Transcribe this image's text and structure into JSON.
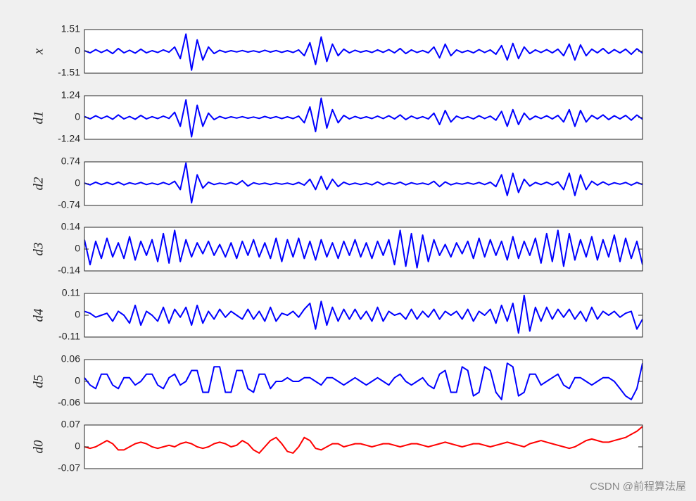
{
  "chart_data": [
    {
      "type": "line",
      "ylabel": "x",
      "color": "#0000ff",
      "ylim": [
        -1.51,
        1.51
      ],
      "yticks": [
        -1.51,
        0,
        1.51
      ],
      "values": [
        0.05,
        -0.1,
        0.12,
        -0.08,
        0.1,
        -0.15,
        0.2,
        -0.1,
        0.08,
        -0.12,
        0.15,
        -0.1,
        0.05,
        -0.08,
        0.1,
        -0.06,
        0.3,
        -0.5,
        1.2,
        -1.3,
        0.8,
        -0.6,
        0.3,
        -0.15,
        0.08,
        -0.06,
        0.05,
        -0.04,
        0.06,
        -0.05,
        0.04,
        -0.06,
        0.08,
        -0.05,
        0.06,
        -0.07,
        0.05,
        -0.08,
        0.1,
        -0.3,
        0.6,
        -0.9,
        1.0,
        -0.7,
        0.5,
        -0.3,
        0.15,
        -0.1,
        0.08,
        -0.06,
        0.05,
        -0.08,
        0.1,
        -0.07,
        0.12,
        -0.1,
        0.2,
        -0.15,
        0.1,
        -0.08,
        0.06,
        -0.1,
        0.3,
        -0.45,
        0.5,
        -0.3,
        0.1,
        -0.08,
        0.06,
        -0.1,
        0.12,
        -0.08,
        0.1,
        -0.2,
        0.4,
        -0.6,
        0.55,
        -0.5,
        0.3,
        -0.15,
        0.1,
        -0.08,
        0.12,
        -0.1,
        0.15,
        -0.3,
        0.5,
        -0.6,
        0.45,
        -0.3,
        0.15,
        -0.1,
        0.2,
        -0.15,
        0.12,
        -0.1,
        0.15,
        -0.2,
        0.18,
        -0.12
      ]
    },
    {
      "type": "line",
      "ylabel": "d1",
      "color": "#0000ff",
      "ylim": [
        -1.24,
        1.24
      ],
      "yticks": [
        -1.24,
        0,
        1.24
      ],
      "values": [
        0.06,
        -0.08,
        0.1,
        -0.06,
        0.08,
        -0.1,
        0.15,
        -0.08,
        0.06,
        -0.1,
        0.12,
        -0.08,
        0.05,
        -0.06,
        0.08,
        -0.05,
        0.3,
        -0.5,
        1.0,
        -1.1,
        0.7,
        -0.5,
        0.25,
        -0.12,
        0.06,
        -0.05,
        0.04,
        -0.03,
        0.05,
        -0.04,
        0.03,
        -0.05,
        0.06,
        -0.04,
        0.05,
        -0.06,
        0.04,
        -0.06,
        0.08,
        -0.3,
        0.6,
        -0.8,
        1.1,
        -0.6,
        0.45,
        -0.3,
        0.12,
        -0.08,
        0.06,
        -0.05,
        0.04,
        -0.06,
        0.08,
        -0.06,
        0.1,
        -0.08,
        0.15,
        -0.12,
        0.08,
        -0.06,
        0.05,
        -0.08,
        0.25,
        -0.4,
        0.4,
        -0.25,
        0.08,
        -0.06,
        0.05,
        -0.08,
        0.1,
        -0.06,
        0.08,
        -0.15,
        0.35,
        -0.5,
        0.45,
        -0.4,
        0.25,
        -0.12,
        0.08,
        -0.06,
        0.1,
        -0.08,
        0.12,
        -0.25,
        0.45,
        -0.5,
        0.4,
        -0.25,
        0.12,
        -0.08,
        0.15,
        -0.12,
        0.1,
        -0.08,
        0.12,
        -0.15,
        0.14,
        -0.1
      ]
    },
    {
      "type": "line",
      "ylabel": "d2",
      "color": "#0000ff",
      "ylim": [
        -0.74,
        0.74
      ],
      "yticks": [
        -0.74,
        0,
        0.74
      ],
      "values": [
        0.02,
        -0.04,
        0.05,
        -0.03,
        0.04,
        -0.03,
        0.05,
        -0.04,
        0.03,
        -0.02,
        0.04,
        -0.03,
        0.02,
        -0.03,
        0.04,
        -0.03,
        0.08,
        -0.2,
        0.7,
        -0.65,
        0.3,
        -0.15,
        0.05,
        -0.03,
        0.02,
        -0.02,
        0.04,
        -0.03,
        0.1,
        -0.08,
        0.03,
        -0.02,
        0.02,
        -0.03,
        0.02,
        -0.02,
        0.02,
        -0.03,
        0.04,
        -0.05,
        0.15,
        -0.2,
        0.25,
        -0.2,
        0.15,
        -0.1,
        0.05,
        -0.03,
        0.02,
        -0.03,
        0.02,
        -0.04,
        0.06,
        -0.04,
        0.03,
        -0.02,
        0.05,
        -0.04,
        0.03,
        -0.02,
        0.02,
        -0.03,
        0.08,
        -0.1,
        0.06,
        -0.04,
        0.02,
        -0.02,
        0.03,
        -0.02,
        0.04,
        -0.03,
        0.05,
        -0.1,
        0.3,
        -0.4,
        0.35,
        -0.3,
        0.15,
        -0.08,
        0.04,
        -0.03,
        0.05,
        -0.04,
        0.06,
        -0.2,
        0.35,
        -0.4,
        0.3,
        -0.2,
        0.08,
        -0.05,
        0.06,
        -0.04,
        0.03,
        -0.02,
        0.04,
        -0.05,
        0.04,
        -0.03
      ]
    },
    {
      "type": "line",
      "ylabel": "d3",
      "color": "#0000ff",
      "ylim": [
        -0.14,
        0.14
      ],
      "yticks": [
        -0.14,
        0,
        0.14
      ],
      "values": [
        0.06,
        -0.1,
        0.05,
        -0.06,
        0.07,
        -0.05,
        0.04,
        -0.06,
        0.08,
        -0.07,
        0.05,
        -0.04,
        0.06,
        -0.08,
        0.1,
        -0.09,
        0.12,
        -0.08,
        0.06,
        -0.05,
        0.04,
        -0.03,
        0.05,
        -0.04,
        0.03,
        -0.05,
        0.04,
        -0.06,
        0.05,
        -0.04,
        0.06,
        -0.05,
        0.04,
        -0.06,
        0.07,
        -0.08,
        0.06,
        -0.05,
        0.07,
        -0.06,
        0.05,
        -0.07,
        0.06,
        -0.05,
        0.04,
        -0.06,
        0.05,
        -0.04,
        0.06,
        -0.05,
        0.04,
        -0.06,
        0.05,
        -0.04,
        0.06,
        -0.1,
        0.12,
        -0.11,
        0.1,
        -0.12,
        0.09,
        -0.08,
        0.06,
        -0.04,
        0.03,
        -0.05,
        0.04,
        -0.03,
        0.05,
        -0.06,
        0.07,
        -0.05,
        0.06,
        -0.04,
        0.05,
        -0.07,
        0.08,
        -0.06,
        0.05,
        -0.04,
        0.07,
        -0.09,
        0.1,
        -0.08,
        0.12,
        -0.11,
        0.1,
        -0.07,
        0.06,
        -0.05,
        0.08,
        -0.07,
        0.06,
        -0.05,
        0.09,
        -0.08,
        0.07,
        -0.06,
        0.05,
        -0.1
      ]
    },
    {
      "type": "line",
      "ylabel": "d4",
      "color": "#0000ff",
      "ylim": [
        -0.11,
        0.11
      ],
      "yticks": [
        -0.11,
        0,
        0.11
      ],
      "values": [
        0.02,
        0.01,
        -0.01,
        0.0,
        0.01,
        -0.03,
        0.02,
        0.0,
        -0.04,
        0.05,
        -0.05,
        0.02,
        0.0,
        -0.03,
        0.04,
        -0.04,
        0.03,
        -0.01,
        0.04,
        -0.05,
        0.05,
        -0.04,
        0.02,
        -0.02,
        0.03,
        -0.01,
        0.02,
        0.0,
        -0.02,
        0.03,
        -0.02,
        0.02,
        -0.03,
        0.04,
        -0.03,
        0.01,
        0.0,
        0.02,
        -0.01,
        0.03,
        0.06,
        -0.07,
        0.07,
        -0.05,
        0.04,
        -0.03,
        0.03,
        -0.02,
        0.03,
        -0.02,
        0.02,
        -0.03,
        0.04,
        -0.03,
        0.02,
        0.0,
        0.01,
        -0.02,
        0.03,
        -0.02,
        0.02,
        -0.01,
        0.03,
        -0.02,
        0.02,
        0.0,
        0.02,
        -0.02,
        0.03,
        -0.03,
        0.02,
        0.0,
        0.03,
        -0.04,
        0.05,
        -0.03,
        0.06,
        -0.09,
        0.1,
        -0.08,
        0.04,
        -0.03,
        0.04,
        -0.02,
        0.03,
        -0.01,
        0.03,
        -0.02,
        0.02,
        -0.03,
        0.04,
        -0.02,
        0.02,
        0.0,
        0.02,
        -0.01,
        0.01,
        0.02,
        -0.07,
        -0.02
      ]
    },
    {
      "type": "line",
      "ylabel": "d5",
      "color": "#0000ff",
      "ylim": [
        -0.06,
        0.06
      ],
      "yticks": [
        -0.06,
        0,
        0.06
      ],
      "values": [
        0.01,
        -0.01,
        -0.02,
        0.02,
        0.02,
        -0.01,
        -0.02,
        0.01,
        0.01,
        -0.01,
        0.0,
        0.02,
        0.02,
        -0.01,
        -0.02,
        0.01,
        0.02,
        -0.01,
        0.0,
        0.03,
        0.03,
        -0.03,
        -0.03,
        0.04,
        0.04,
        -0.03,
        -0.03,
        0.03,
        0.03,
        -0.02,
        -0.03,
        0.02,
        0.02,
        -0.02,
        0.0,
        0.0,
        0.01,
        0.0,
        0.0,
        0.01,
        0.01,
        0.0,
        -0.01,
        0.01,
        0.01,
        0.0,
        -0.01,
        0.0,
        0.01,
        0.0,
        -0.01,
        0.0,
        0.01,
        0.0,
        -0.01,
        0.01,
        0.02,
        0.0,
        -0.01,
        0.0,
        0.01,
        -0.01,
        -0.02,
        0.02,
        0.03,
        -0.03,
        -0.03,
        0.04,
        0.03,
        -0.04,
        -0.03,
        0.04,
        0.03,
        -0.03,
        -0.05,
        0.05,
        0.04,
        -0.04,
        -0.03,
        0.02,
        0.02,
        -0.01,
        0.0,
        0.01,
        0.02,
        -0.01,
        -0.02,
        0.01,
        0.01,
        0.0,
        -0.01,
        0.0,
        0.01,
        0.01,
        0.0,
        -0.02,
        -0.04,
        -0.05,
        -0.02,
        0.05
      ]
    },
    {
      "type": "line",
      "ylabel": "d0",
      "color": "#ff0000",
      "ylim": [
        -0.07,
        0.07
      ],
      "yticks": [
        -0.07,
        0,
        0.07
      ],
      "values": [
        0.0,
        -0.005,
        0.0,
        0.01,
        0.02,
        0.01,
        -0.01,
        -0.01,
        0.0,
        0.01,
        0.015,
        0.01,
        0.0,
        -0.005,
        0.0,
        0.005,
        0.0,
        0.01,
        0.015,
        0.01,
        0.0,
        -0.005,
        0.0,
        0.01,
        0.015,
        0.01,
        0.0,
        0.005,
        0.02,
        0.01,
        -0.01,
        -0.02,
        0.0,
        0.02,
        0.03,
        0.01,
        -0.015,
        -0.02,
        0.0,
        0.03,
        0.02,
        -0.005,
        -0.01,
        0.0,
        0.01,
        0.01,
        0.0,
        0.005,
        0.01,
        0.01,
        0.005,
        0.0,
        0.005,
        0.01,
        0.01,
        0.005,
        0.0,
        0.005,
        0.01,
        0.01,
        0.005,
        0.0,
        0.005,
        0.01,
        0.015,
        0.01,
        0.005,
        0.0,
        0.005,
        0.01,
        0.01,
        0.005,
        0.0,
        0.005,
        0.01,
        0.015,
        0.01,
        0.005,
        0.0,
        0.01,
        0.015,
        0.02,
        0.015,
        0.01,
        0.005,
        0.0,
        -0.005,
        0.0,
        0.01,
        0.02,
        0.025,
        0.02,
        0.015,
        0.015,
        0.02,
        0.025,
        0.03,
        0.04,
        0.05,
        0.065
      ]
    }
  ],
  "watermark": "CSDN @前程算法屋"
}
